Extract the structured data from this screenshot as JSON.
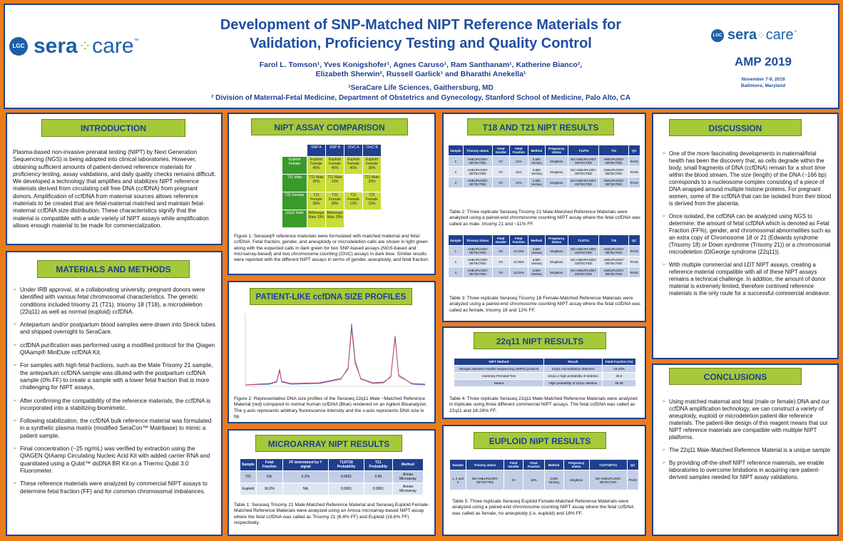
{
  "header": {
    "title_line1": "Development of SNP-Matched NIPT Reference Materials for",
    "title_line2": "Validation, Proficiency Testing and Quality Control",
    "authors_line1": "Farol L. Tomson¹, Yves Konigshofer¹, Agnes Caruso¹, Ram Santhanam¹, Katherine Bianco²,",
    "authors_line2": "Elizabeth Sherwin², Russell Garlick¹ and Bharathi Anekella¹",
    "affil1": "¹SeraCare Life Sciences, Gaithersburg, MD",
    "affil2": "² Division of Maternal-Fetal Medicine, Department of Obstetrics and Gynecology, Stanford School of Medicine, Palo Alto, CA",
    "logo_lgc": "LGC",
    "logo_sera": "sera",
    "logo_care": "care",
    "logo_tm": "™",
    "conf": "AMP 2019",
    "conf_dates": "November 7-9, 2019",
    "conf_place": "Baltimore, Maryland"
  },
  "intro": {
    "heading": "INTRODUCTION",
    "text": "Plasma-based non-invasive prenatal testing (NIPT) by Next Generation Sequencing (NGS) is being adopted into clinical laboratories.  However, obtaining sufficient amounts of patient-derived reference materials for proficiency testing, assay validations, and daily quality checks remains difficult.  We developed a technology that amplifies and stabilizes NIPT reference materials derived from circulating cell free DNA (ccfDNA) from pregnant donors.  Amplification of ccfDNA from maternal sources allows reference materials to be created that are fetal-maternal matched and maintain fetal-maternal ccfDNA size distribution.  These characteristics signify that the material is compatible with a wide variety of NIPT assays while amplification allows enough material to be made for commercialization."
  },
  "methods": {
    "heading": "MATERIALS AND METHODS",
    "bullets": [
      "Under IRB approval, at a collaborating university, pregnant donors were identified with various fetal chromosomal characteristics.  The genetic conditions included trisomy 21 (T21), trisomy 18 (T18), a microdeletion (22q11) as well as normal (euploid) ccfDNA.",
      "Antepartum and/or postpartum blood samples were drawn into Streck tubes and shipped overnight to SeraCare.",
      "ccfDNA purification was performed using a modified protocol for the Qiagen QIAamp® MinElute ccfDNA Kit.",
      "For samples with high fetal fractions, such as the Male Trisomy 21 sample, the antepartum ccfDNA sample was diluted with the postpartum ccfDNA sample (0% FF) to create a sample with a lower fetal fraction that is more challenging for NIPT assays.",
      "After confirming the compatibility of the reference materials, the ccfDNA is incorporated into a stabilizing biomimetic.",
      "Following stabilization, the ccfDNA bulk reference material was formulated in a synthetic plasma matrix (modified SeraCon™ Matribase) to mimic a patient sample.",
      "Final concentration (~25 ng/mL) was verified by extraction using the QIAGEN QIAamp Circulating Nucleic Acid Kit with added carrier RNA and quantitated using a Qubit™ dsDNA BR Kit on a Thermo Qubit 3.0 Fluorometer.",
      "These reference materials were analyzed by commercial NIPT assays to determine fetal fraction (FF) and for common chromosomal imbalances."
    ]
  },
  "assay": {
    "heading": "NIPT ASSAY COMPARISON",
    "cols": [
      "SNP A",
      "SNP B",
      "ChrC A",
      "ChrC B"
    ],
    "rows": [
      {
        "label": "Euploid Female",
        "cells": [
          "Euploid Female 40%",
          "Euploid Female 40%",
          "Euploid Female 46%",
          "Euploid Female 38%"
        ]
      },
      {
        "label": "T21 Male",
        "cells": [
          "T21 Male 20%",
          "T21 Male 19%",
          "",
          "T21 Male 20%"
        ]
      },
      {
        "label": "T21 Female",
        "cells": [
          "T21 Female 28%",
          "T21 Female 28%",
          "T21 Female 13%",
          "T21 Female 13%"
        ]
      },
      {
        "label": "22q11 Male",
        "cells": [
          "Bi/lineage Male 29%",
          "Bi/lineage Male 29%",
          "",
          ""
        ]
      }
    ],
    "caption": "Figure 1: Seraseq® reference materials were formulated with matched maternal and fetal ccfDNA. Fetal fraction, gender, and aneuploidy or microdeletion calls are shown in light green along with the expected calls in dark green for two SNP-based assays (NGS-based and microarray-based) and two chromosome counting (ChrC) assays in dark blue.  Similar results were reported with the different NIPT assays in terms of gender, aneuploidy, and fetal fraction."
  },
  "profiles": {
    "heading": "PATIENT-LIKE ccfDNA SIZE PROFILES",
    "caption": "Figure 2: Representative DNA size profiles of the Seraseq 22q11 Male ~Matched Reference Material (red) compared to normal human ccfDNA (Blue) rendered on an Agilent Bioanalyzer.  The y-axis represents arbitrary fluorescence intensity and the x-axis represents DNA size in bp."
  },
  "microarray": {
    "heading": "MICROARRAY NIPT RESULTS",
    "cols": [
      "Sample",
      "Fetal Fraction",
      "FF determined by Y signal",
      "T13/T18 Probability",
      "T21 Probability",
      "Method"
    ],
    "rows": [
      [
        "T21",
        "6%",
        "6.2%",
        "0.0001",
        "0.99",
        "Ariosa Microarray"
      ],
      [
        "Euploid",
        "16.6%",
        "NA",
        "0.0001",
        "0.0001",
        "Ariosa Microarray"
      ]
    ],
    "caption": "Table 1: Seraseq Trisomy 21 Male-Matched Reference Material and Seraseq Euploid Female-Matched Reference Materials were analyzed using an Ariosa microarray-based NIPT assay where the fetal ccfDNA was called as Trisomy 21 (6-8% FF) and Euploid (16.6% FF) respectively."
  },
  "t18t21": {
    "heading": "T18 AND T21 NIPT RESULTS",
    "cols": [
      "Sample",
      "Trisomy status",
      "Fetal Gender",
      "Fetal Fraction",
      "Method",
      "Pregnancy status",
      "T13/T8",
      "T21",
      "QC"
    ],
    "rows": [
      [
        "1",
        "ANEUPLOIDY DETECTED",
        "XY",
        "11%",
        "ILMN Veriseq",
        "Singleton",
        "NO ANEUPLOIDY DETECTED",
        "ANEUPLOIDY DETECTED",
        "PASS"
      ],
      [
        "2",
        "ANEUPLOIDY DETECTED",
        "XY",
        "11%",
        "ILMN Veriseq",
        "Singleton",
        "NO ANEUPLOIDY DETECTED",
        "ANEUPLOIDY DETECTED",
        "PASS"
      ],
      [
        "3",
        "ANEUPLOIDY DETECTED",
        "XY",
        "12%",
        "ILMN Veriseq",
        "Singleton",
        "NO ANEUPLOIDY DETECTED",
        "ANEUPLOIDY DETECTED",
        "PASS"
      ]
    ],
    "caption2": "Table 2: Three replicate Seraseq Trisomy 21 Male-Matched Reference Materials were analyzed using a paired-end chromosome counting NIPT assay where the fetal ccfDNA was called as male, trisomy 21 and ~11% FF.",
    "cols3": [
      "Sample",
      "Trisomy Status",
      "Fetal Gender",
      "Fetal Fraction",
      "Method",
      "Pregnancy Status",
      "T13/T21",
      "T18",
      "QC"
    ],
    "rows3": [
      [
        "1",
        "ANEUPLOIDY DETECTED",
        "XX",
        "12.03%",
        "ILMN Veriseq",
        "Singleton",
        "NO ANEUPLOIDY DETECTED",
        "ANEUPLOIDY DETECTED",
        "PASS"
      ],
      [
        "2",
        "ANEUPLOIDY DETECTED",
        "XX",
        "12.45%",
        "ILMN Veriseq",
        "Singleton",
        "NO ANEUPLOIDY DETECTED",
        "ANEUPLOIDY DETECTED",
        "PASS"
      ],
      [
        "3",
        "ANEUPLOIDY DETECTED",
        "XX",
        "12.01%",
        "ILMN Veriseq",
        "Singleton",
        "NO ANEUPLOIDY DETECTED",
        "ANEUPLOIDY DETECTED",
        "PASS"
      ]
    ],
    "caption3": "Table 3: Three replicate Seraseq Trisomy 18 Female-Matched Reference Materials were analyzed using a paired-end chromosome counting NIPT assay where the fetal ccfDNA was called as female, trisomy 18 and 12% FF."
  },
  "q11": {
    "heading": "22q11 NIPT RESULTS",
    "cols": [
      "NIPT Method",
      "Result",
      "Fetal Fraction (%)"
    ],
    "rows": [
      [
        "Shotgun Massive Parallel Sequencing (sMPS) protocol",
        "22q11 microdeletion detected",
        "18-20%"
      ],
      [
        "Harmony Prenatal Test",
        "22q11.2 high probability of deletion",
        "25.9"
      ],
      [
        "Natera",
        "High probability of 22q11 deletion",
        "26.35"
      ]
    ],
    "caption": "Table 4: Three replicate Seraseq 22q11 Male-Matched Reference Materials were analyzed in triplicate using three different commercial NIPT assays.  The fetal ccfDNA was called as 22q11 and 18-26% FF."
  },
  "euploid": {
    "heading": "EUPLOID NIPT RESULTS",
    "cols": [
      "Sample",
      "Trisomy status",
      "Fetal Gender",
      "Fetal Fraction",
      "Method",
      "Pregnancy status",
      "T13/T18/T21",
      "QC"
    ],
    "rows": [
      [
        "1, 2 and 3",
        "NO ANEUPLOIDY DETECTED",
        "XX",
        "18%",
        "ILMN Veriseq",
        "Singleton",
        "NO ANEUPLOIDY DETECTED",
        "PASS"
      ]
    ],
    "caption": "Table 5: Three replicate Seraseq Euploid Female-Matched Reference Materials were analyzed using a paired-end chromosome counting NIPT assay where the fetal ccfDNA was called as female, no aneuploidy (i.e. euploid) and 18% FF."
  },
  "discussion": {
    "heading": "DISCUSSION",
    "bullets": [
      "One of the more fascinating developments in maternal/fetal health has been the discovery that, as cells degrade within the body, small fragments of DNA (ccfDNA) remain for a short time within the blood stream.  The size (length) of the DNA (~166 bp) corresponds to a nucleosome complex consisting of a piece of DNA wrapped around multiple histone proteins.  For pregnant women, some of the ccfDNA that can be isolated from their blood is derived from the placenta.",
      "Once isolated, the ccfDNA can be analyzed using NGS to determine: the amount of fetal ccfDNA which is denoted as Fetal Fraction (FF%), gender, and chromosomal abnormalities such as an extra copy of Chromosome 18 or 21 (Edwards syndrome (Trisomy 18) or Down syndrome (Trisomy 21)) or a chromosomal microdeletion (DiGeorge syndrome (22q11)).",
      "With multiple commercial and LDT NIPT assays, creating a reference material compatible with all of these NIPT assays remains a technical challenge.  In addition, the amount of donor material is extremely limited, therefore contrived reference materials is the only route for a successful commercial endeavor."
    ]
  },
  "conclusions": {
    "heading": "CONCLUSIONS",
    "bullets": [
      "Using matched maternal and fetal (male or female) DNA and our ccfDNA amplification technology, we can construct a variety of aneuploidy, euploid  or microdeletion patient-like reference materials.  The patient-like design of this reagent  means that our NIPT reference materials are compatible with multiple NIPT platforms.",
      "The 22q11 Male-Matched Reference Material is a unique sample",
      "By providing off-the-shelf NIPT reference materials, we enable laboratories to overcome limitations in acquiring rare patient-derived samples needed for NIPT assay validations."
    ]
  },
  "colors": {
    "border": "#e87d1e",
    "navy": "#1f3f8f",
    "heading_bg": "#a6c93a",
    "dark_green": "#3a9a2a",
    "light_green": "#c8dc3a"
  }
}
